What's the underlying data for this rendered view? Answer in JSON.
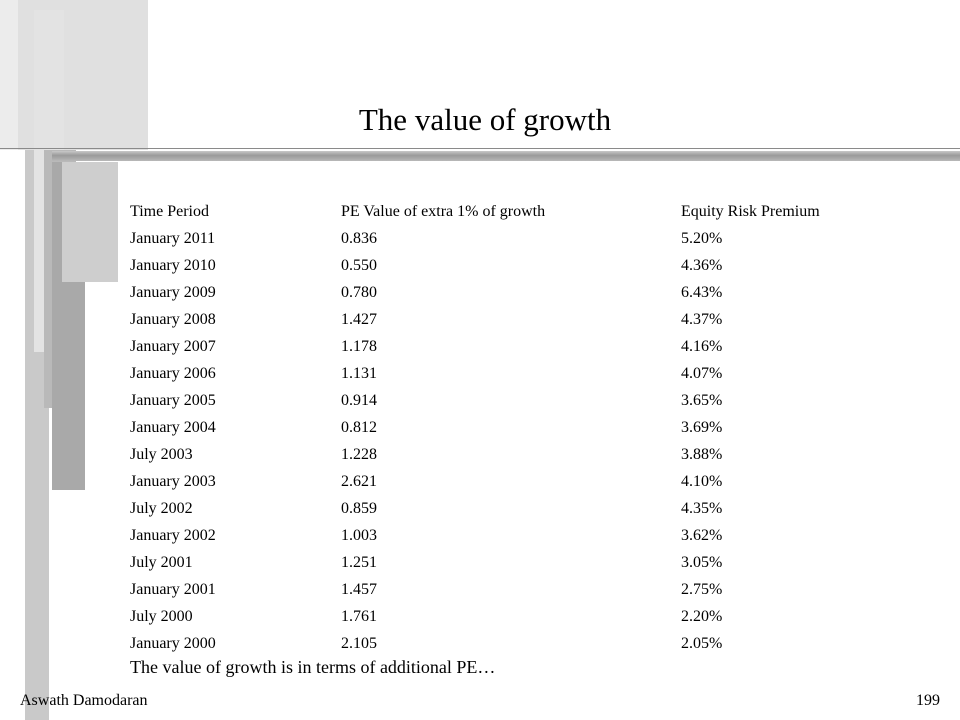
{
  "slide": {
    "title": "The value of growth",
    "table": {
      "headers": [
        "Time Period",
        "PE Value of extra 1% of growth",
        "Equity Risk Premium"
      ],
      "rows": [
        [
          "January 2011",
          "0.836",
          "5.20%"
        ],
        [
          "January 2010",
          "0.550",
          "4.36%"
        ],
        [
          "January 2009",
          "0.780",
          "6.43%"
        ],
        [
          "January 2008",
          "1.427",
          "4.37%"
        ],
        [
          "January 2007",
          "1.178",
          "4.16%"
        ],
        [
          "January 2006",
          "1.131",
          "4.07%"
        ],
        [
          "January 2005",
          "0.914",
          "3.65%"
        ],
        [
          "January 2004",
          "0.812",
          "3.69%"
        ],
        [
          "July 2003",
          "1.228",
          "3.88%"
        ],
        [
          "January 2003",
          "2.621",
          "4.10%"
        ],
        [
          "July 2002",
          "0.859",
          "4.35%"
        ],
        [
          "January 2002",
          "1.003",
          "3.62%"
        ],
        [
          "July 2001",
          "1.251",
          "3.05%"
        ],
        [
          "January 2001",
          "1.457",
          "2.75%"
        ],
        [
          "July 2000",
          "1.761",
          "2.20%"
        ],
        [
          "January 2000",
          "2.105",
          "2.05%"
        ]
      ]
    },
    "note": "The value of growth is in terms of additional PE…",
    "footer": {
      "author": "Aswath Damodaran",
      "page_number": "199"
    }
  },
  "colors": {
    "background": "#ffffff",
    "text": "#000000",
    "decor_gray_light": "#e2e2e2",
    "decor_gray_mid": "#c8c8c8",
    "decor_gray_dark": "#a8a8a8"
  }
}
